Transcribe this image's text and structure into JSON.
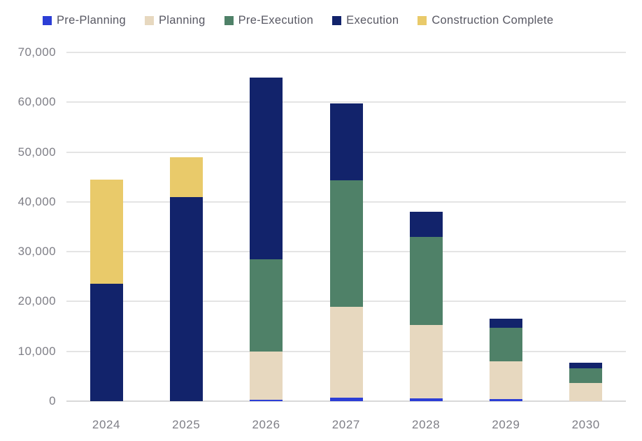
{
  "chart_data": {
    "type": "bar",
    "stacked": true,
    "title": "",
    "xlabel": "",
    "ylabel": "",
    "categories": [
      "2024",
      "2025",
      "2026",
      "2027",
      "2028",
      "2029",
      "2030"
    ],
    "series": [
      {
        "name": "Pre-Planning",
        "color": "#2c3ed6",
        "values": [
          0,
          0,
          250,
          700,
          500,
          400,
          0
        ]
      },
      {
        "name": "Planning",
        "color": "#e7d8bf",
        "values": [
          0,
          0,
          9750,
          18200,
          14800,
          7600,
          3600
        ]
      },
      {
        "name": "Pre-Execution",
        "color": "#4f8168",
        "values": [
          0,
          0,
          18500,
          25500,
          17700,
          6700,
          3000
        ]
      },
      {
        "name": "Execution",
        "color": "#12236b",
        "values": [
          23500,
          41000,
          36500,
          15300,
          5000,
          1800,
          1100
        ]
      },
      {
        "name": "Construction Complete",
        "color": "#e9ca6a",
        "values": [
          21000,
          8000,
          0,
          0,
          0,
          0,
          0
        ]
      }
    ],
    "totals": [
      44500,
      49000,
      65000,
      59700,
      38000,
      16500,
      7700
    ],
    "ylim": [
      0,
      70000
    ],
    "yticks": [
      0,
      10000,
      20000,
      30000,
      40000,
      50000,
      60000,
      70000
    ],
    "ytick_labels": [
      "0",
      "10,000",
      "20,000",
      "30,000",
      "40,000",
      "50,000",
      "60,000",
      "70,000"
    ],
    "grid": true,
    "legend_position": "top"
  },
  "style": {
    "background": "#ffffff",
    "gridline_color": "#e4e4e4",
    "baseline_color": "#d9d9d9",
    "axis_text_color": "#7e7e86",
    "legend_text_color": "#585863"
  }
}
